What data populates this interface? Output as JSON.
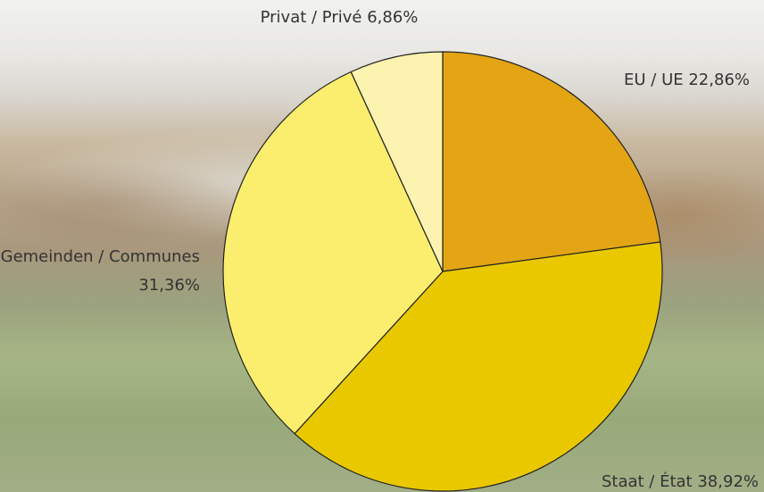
{
  "chart_data": {
    "type": "pie",
    "categories": [
      "EU / UE",
      "Staat / État",
      "Gemeinden / Communes",
      "Privat / Privé"
    ],
    "values": [
      22.86,
      38.92,
      31.36,
      6.86
    ],
    "value_labels": [
      "22,86%",
      "38,92%",
      "31,36%",
      "6,86%"
    ],
    "colors": [
      "#e3a514",
      "#e9c800",
      "#fbee6e",
      "#fdf3b0"
    ]
  }
}
